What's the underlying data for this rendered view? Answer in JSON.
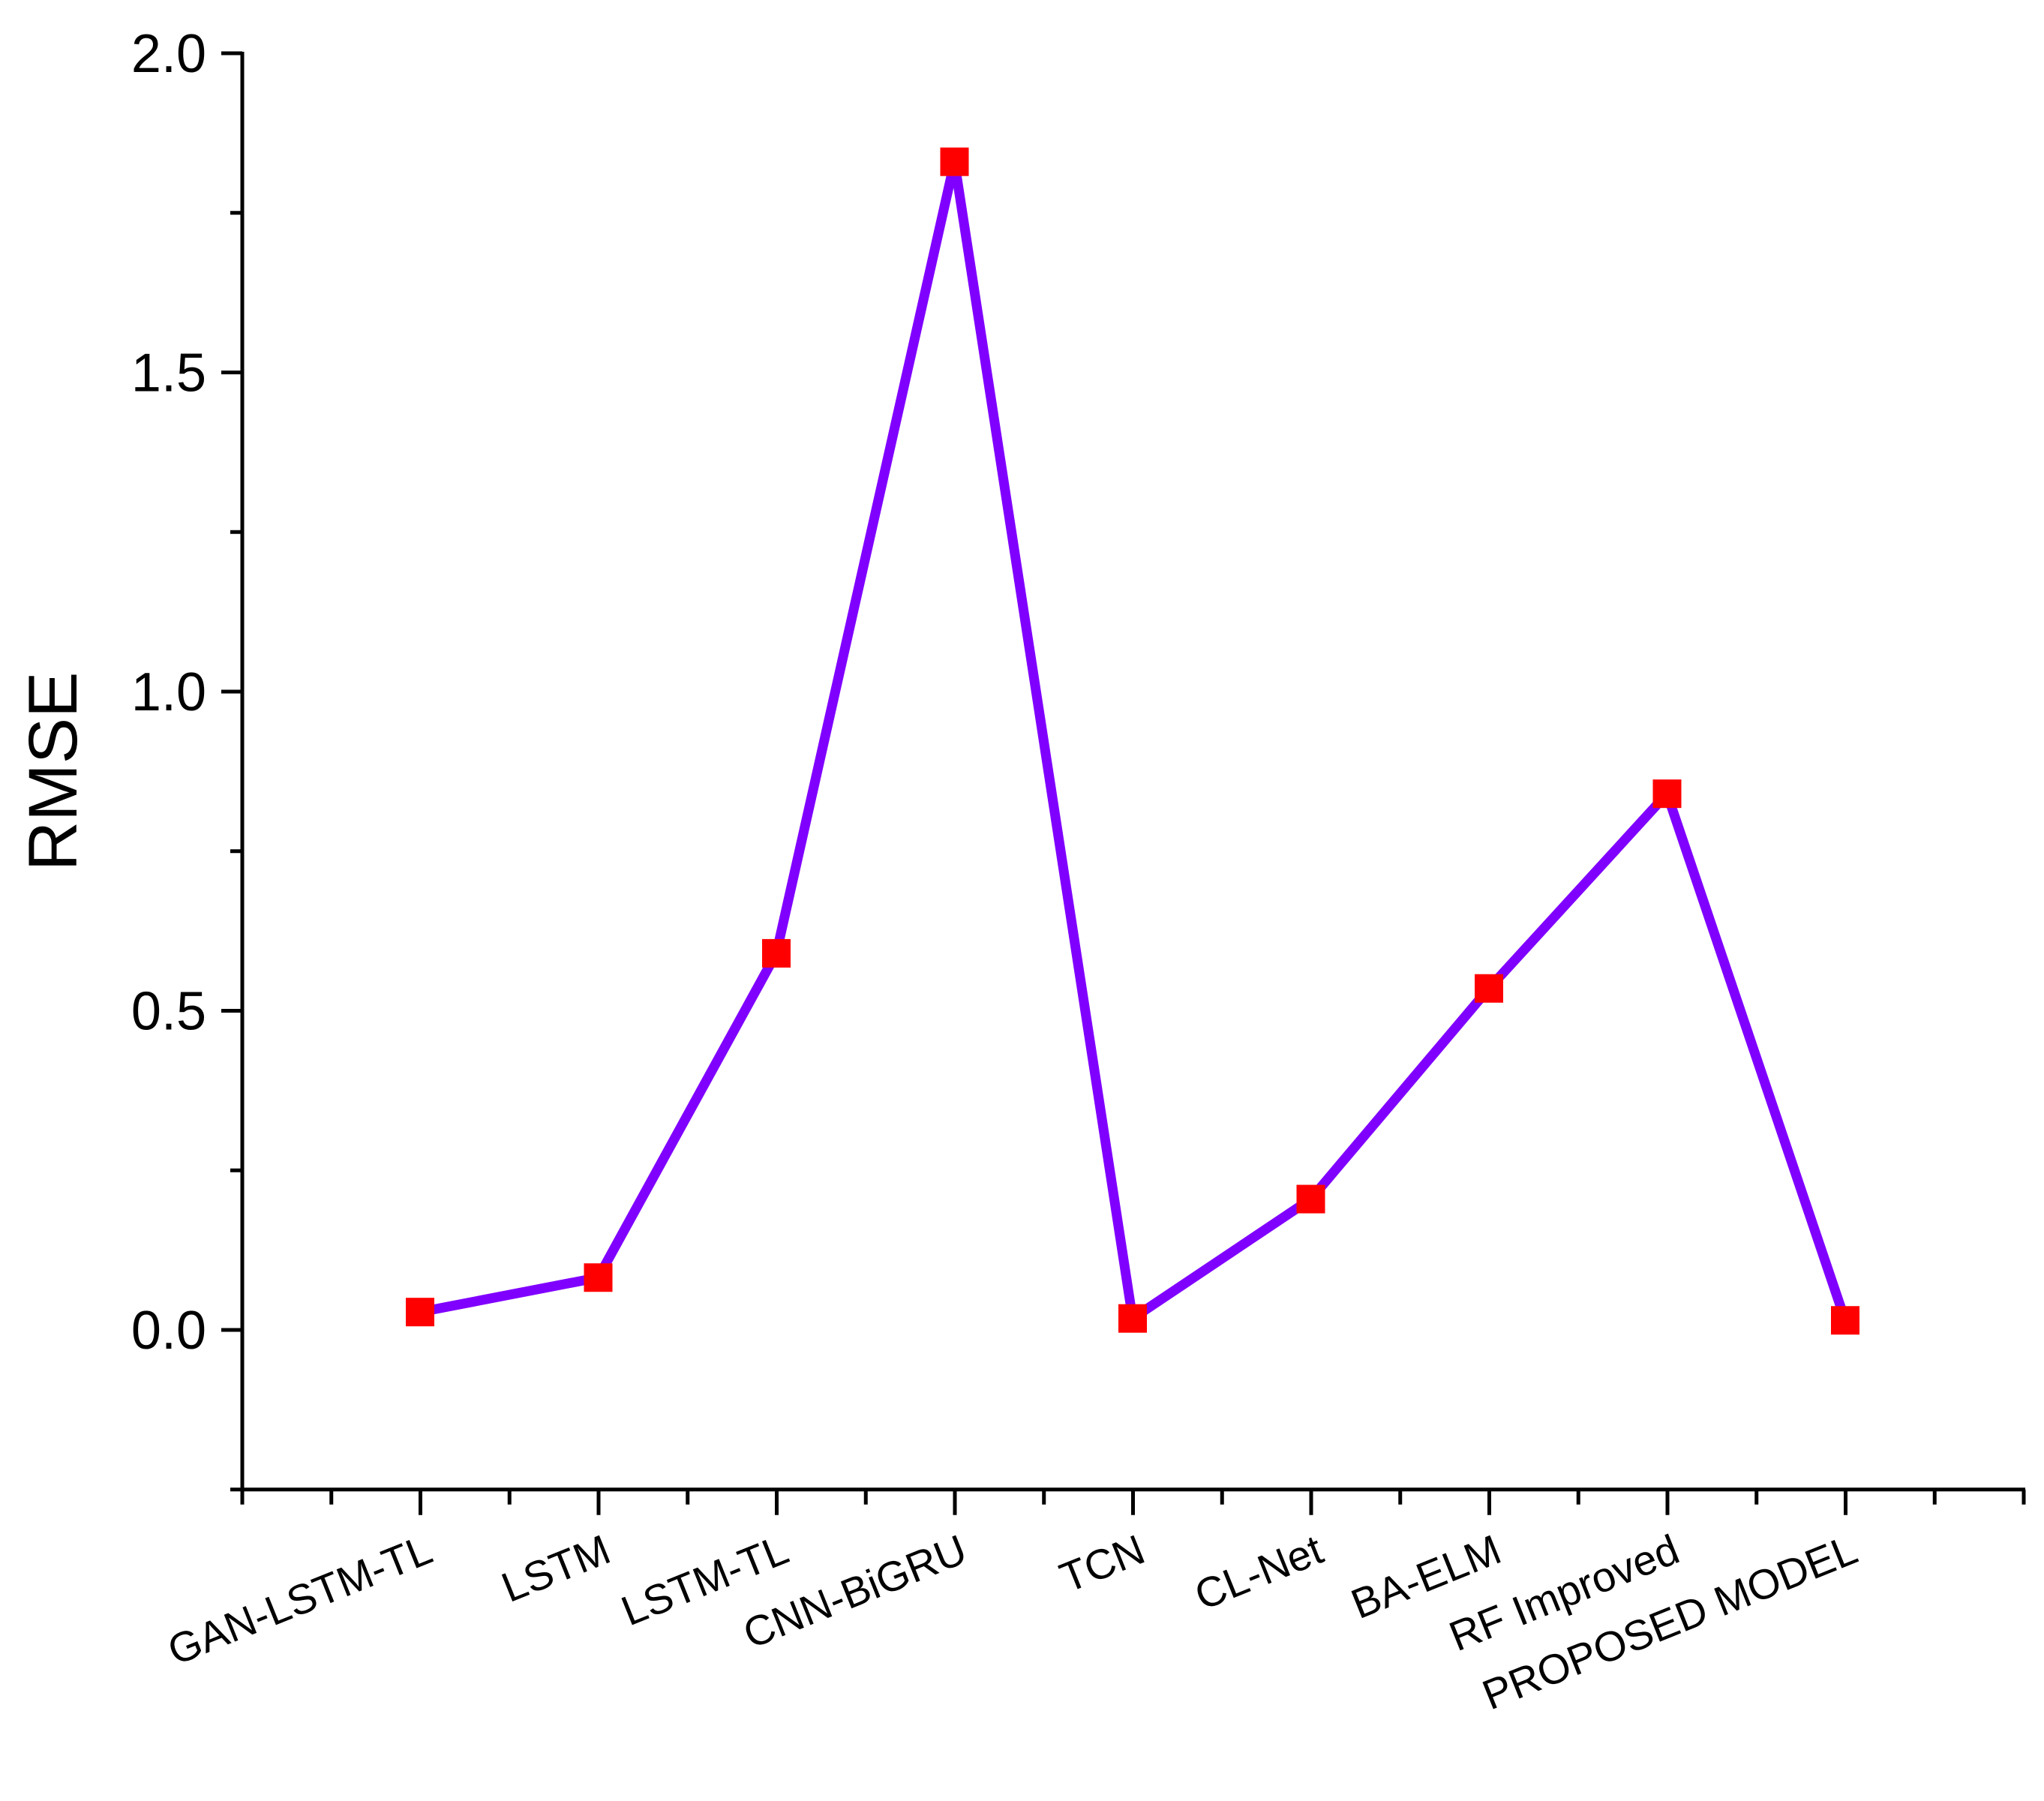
{
  "chart_data": {
    "type": "line",
    "title": "",
    "xlabel": "",
    "ylabel": "RMSE",
    "categories": [
      "GAN-LSTM-TL",
      "LSTM",
      "LSTM-TL",
      "CNN-BiGRU",
      "TCN",
      "CL-Net",
      "BA-ELM",
      "RF Improved",
      "PROPOSED MODEL"
    ],
    "values": [
      0.028,
      0.082,
      0.59,
      1.83,
      0.018,
      0.205,
      0.535,
      0.84,
      0.015
    ],
    "ylim": [
      -0.25,
      2.0
    ],
    "yticks": [
      "0.0",
      "0.5",
      "1.0",
      "1.5",
      "2.0"
    ],
    "ytick_values": [
      0.0,
      0.5,
      1.0,
      1.5,
      2.0
    ],
    "y_minor_step": 0.25,
    "grid": false,
    "legend": "none",
    "line_color": "#8000ff",
    "marker_color": "#ff0000",
    "marker": "square"
  }
}
